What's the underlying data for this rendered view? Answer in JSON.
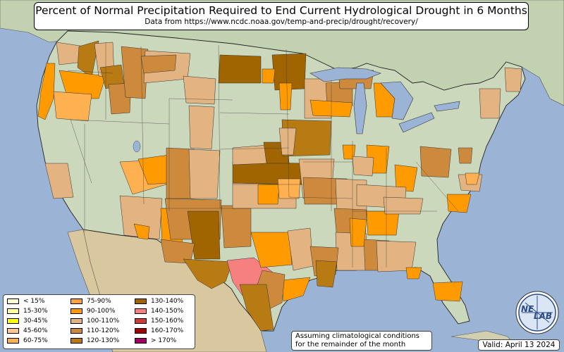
{
  "title": "Percent of Normal Precipitation Required to End Current Hydrological Drought in 6 Months",
  "subtitle": "Data from https://www.ncdc.noaa.gov/temp-and-precip/drought/recovery/",
  "legend": [
    {
      "label": "< 15%",
      "color": "#ffffd4"
    },
    {
      "label": "15-30%",
      "color": "#ffff9e"
    },
    {
      "label": "30-45%",
      "color": "#ffff00"
    },
    {
      "label": "45-60%",
      "color": "#fec890"
    },
    {
      "label": "60-75%",
      "color": "#ffb050"
    },
    {
      "label": "75-90%",
      "color": "#ffa13c"
    },
    {
      "label": "90-100%",
      "color": "#ff9a00"
    },
    {
      "label": "100-110%",
      "color": "#e3b482"
    },
    {
      "label": "110-120%",
      "color": "#cd8a3c"
    },
    {
      "label": "120-130%",
      "color": "#b87a12"
    },
    {
      "label": "130-140%",
      "color": "#a06400"
    },
    {
      "label": "140-150%",
      "color": "#f68080"
    },
    {
      "label": "150-160%",
      "color": "#d03a3a"
    },
    {
      "label": "160-170%",
      "color": "#a00000"
    },
    {
      "label": "> 170%",
      "color": "#a00060"
    }
  ],
  "note_line1": "Assuming climatological conditions",
  "note_line2": "for the remainder of the month",
  "valid": "Valid: April 13 2024",
  "logo_text_top": "NE",
  "logo_text_bottom": "LAB",
  "colors": {
    "ocean": "#9bb4d6",
    "land_us": "#cdd9bc",
    "land_canada": "#c5d4b4",
    "land_mexico": "#d8c8a0"
  }
}
